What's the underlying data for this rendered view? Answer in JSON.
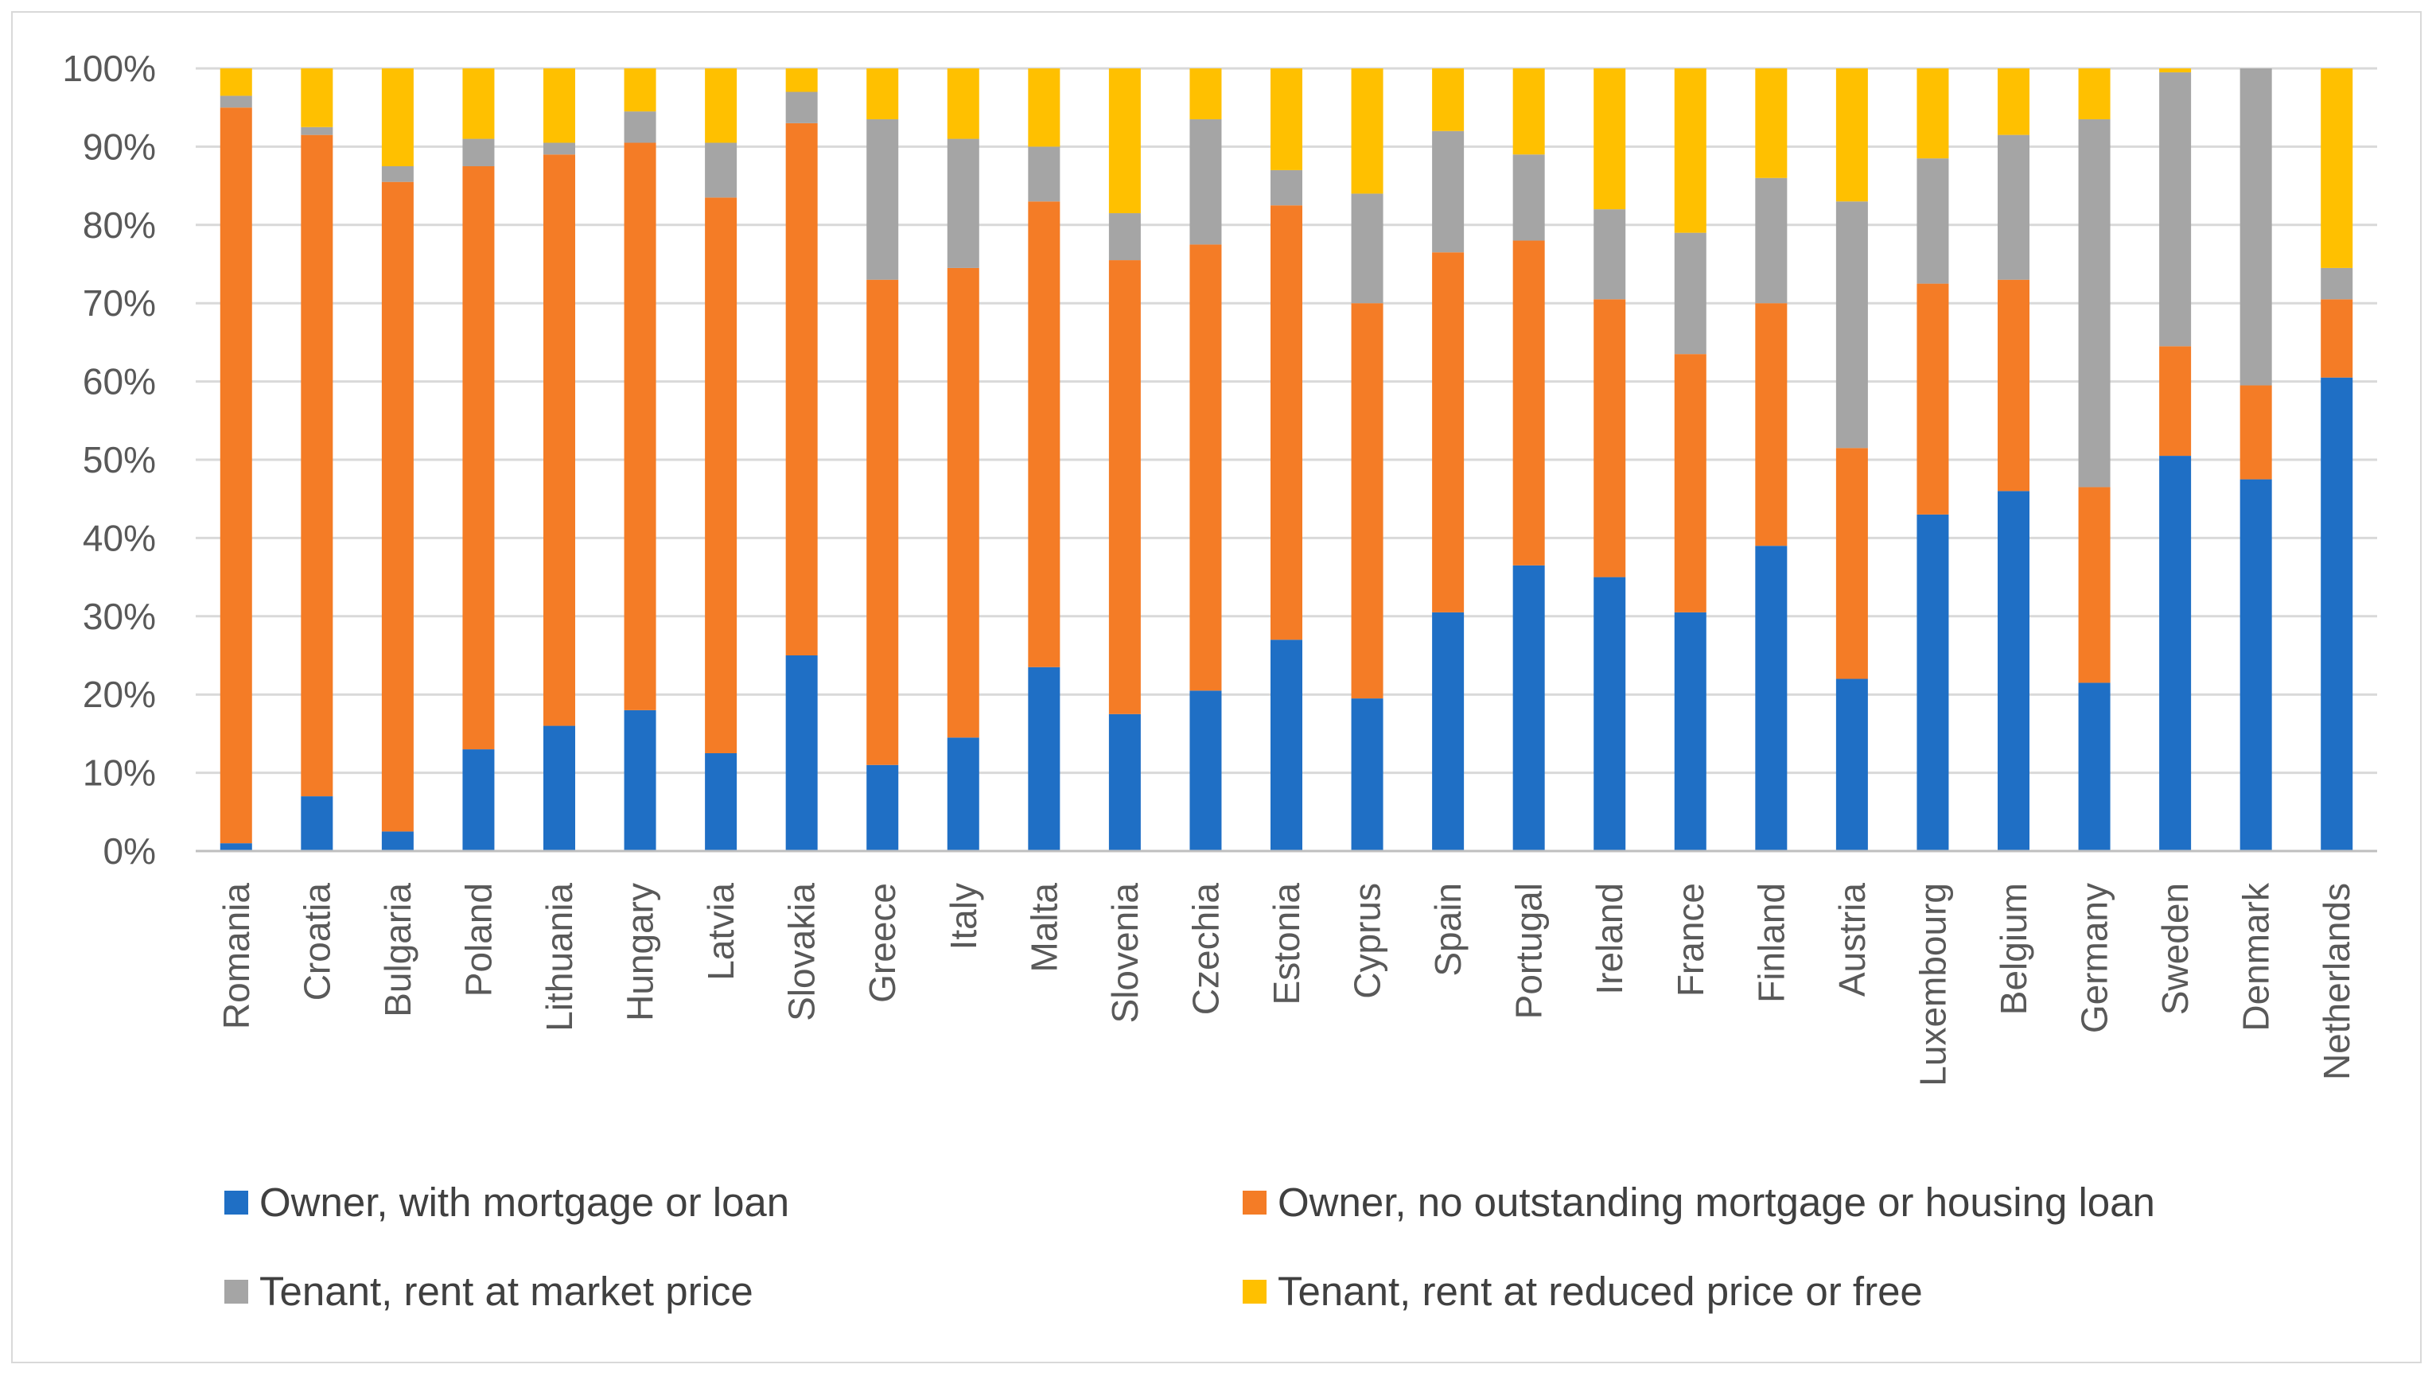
{
  "chart_data": {
    "type": "bar",
    "stacked": true,
    "title": "",
    "xlabel": "",
    "ylabel": "",
    "ylim": [
      0,
      100
    ],
    "ytick_step": 10,
    "ytick_suffix": "%",
    "grid": true,
    "legend_position": "bottom",
    "categories": [
      "Romania",
      "Croatia",
      "Bulgaria",
      "Poland",
      "Lithuania",
      "Hungary",
      "Latvia",
      "Slovakia",
      "Greece",
      "Italy",
      "Malta",
      "Slovenia",
      "Czechia",
      "Estonia",
      "Cyprus",
      "Spain",
      "Portugal",
      "Ireland",
      "France",
      "Finland",
      "Austria",
      "Luxembourg",
      "Belgium",
      "Germany",
      "Sweden",
      "Denmark",
      "Netherlands"
    ],
    "series": [
      {
        "name": "Owner, with mortgage or loan",
        "color": "#1f6fc5",
        "values": [
          1,
          7,
          2.5,
          13,
          16,
          18,
          12.5,
          25,
          11,
          14.5,
          23.5,
          17.5,
          20.5,
          27,
          19.5,
          30.5,
          36.5,
          35,
          30.5,
          39,
          22,
          43,
          46,
          21.5,
          50.5,
          47.5,
          60.5
        ]
      },
      {
        "name": "Owner, no outstanding mortgage or housing loan",
        "color": "#f47c26",
        "values": [
          94,
          84.5,
          83,
          74.5,
          73,
          72.5,
          71,
          68,
          62,
          60,
          59.5,
          58,
          57,
          55.5,
          50.5,
          46,
          41.5,
          35.5,
          33,
          31,
          29.5,
          29.5,
          27,
          25,
          14,
          12,
          10
        ]
      },
      {
        "name": "Tenant, rent at market price",
        "color": "#a5a5a5",
        "values": [
          1.5,
          1,
          2,
          3.5,
          1.5,
          4,
          7,
          4,
          20.5,
          16.5,
          7,
          6,
          16,
          4.5,
          14,
          15.5,
          11,
          11.5,
          15.5,
          16,
          31.5,
          16,
          18.5,
          47,
          35,
          40.5,
          4
        ]
      },
      {
        "name": "Tenant, rent at reduced price or free",
        "color": "#ffc000",
        "values": [
          3.5,
          7.5,
          12.5,
          9,
          9.5,
          5.5,
          9.5,
          3,
          6.5,
          9,
          10,
          18.5,
          6.5,
          13,
          16,
          8,
          11,
          18,
          21,
          14,
          17,
          11.5,
          8.5,
          6.5,
          0.5,
          0,
          25.5
        ]
      }
    ]
  }
}
